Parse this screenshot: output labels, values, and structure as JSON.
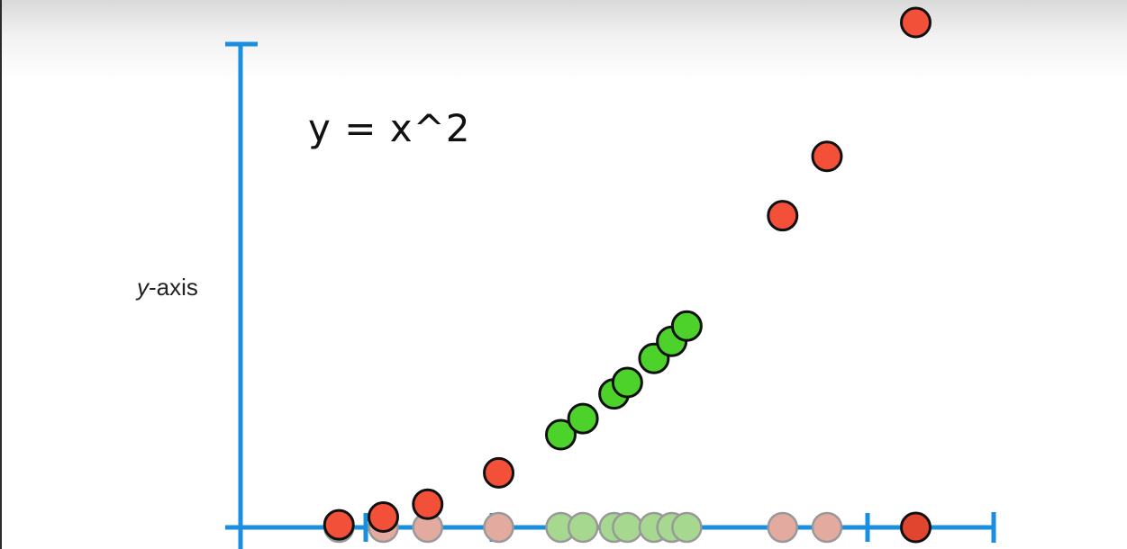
{
  "chart_data": {
    "type": "scatter",
    "title": "",
    "equation": "y = x^2",
    "xlabel": "",
    "ylabel": {
      "variable": "y",
      "suffix": "-axis"
    },
    "xlim": [
      -0.5,
      8.3
    ],
    "ylim": [
      0,
      70
    ],
    "x_ticks": [
      0,
      1,
      2,
      3,
      4,
      5,
      6,
      7
    ],
    "colors": {
      "axis": "#1a8fe0",
      "red": "#f25038",
      "green": "#4dd22c",
      "red_projection": "#e3aaa0",
      "green_projection": "#a6d890",
      "stroke": "#111111",
      "projection_stroke": "#999999"
    },
    "series": [
      {
        "name": "red",
        "x": [
          0.5,
          1.0,
          1.5,
          2.3,
          5.5,
          6.0,
          7.0
        ],
        "y": [
          0.25,
          1.0,
          2.25,
          5.29,
          30.25,
          36.0,
          49.0
        ]
      },
      {
        "name": "green",
        "x": [
          3.0,
          3.25,
          3.6,
          3.75,
          4.05,
          4.25,
          4.42
        ],
        "y": [
          9.0,
          10.56,
          12.96,
          14.06,
          16.4,
          18.06,
          19.54
        ]
      }
    ],
    "projections": {
      "red_x": [
        0.5,
        1.0,
        1.5,
        2.3,
        5.5,
        6.0
      ],
      "green_x": [
        3.0,
        3.25,
        3.6,
        3.75,
        4.05,
        4.25,
        4.42
      ],
      "dark_x": [
        7.0
      ]
    }
  }
}
